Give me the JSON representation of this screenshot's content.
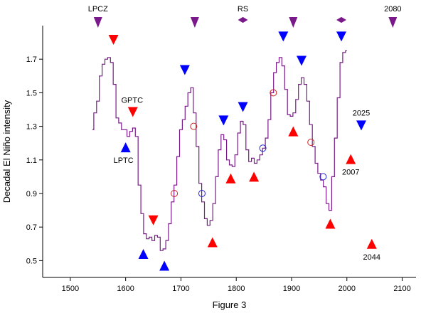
{
  "chart_data": {
    "type": "line",
    "title": "",
    "xlabel": "Figure 3",
    "ylabel": "Decadal El Niño intensity",
    "xlim": [
      1450,
      2125
    ],
    "ylim": [
      0.4,
      1.9
    ],
    "x_ticks": [
      1500,
      1600,
      1700,
      1800,
      1900,
      2000,
      2100
    ],
    "y_ticks": [
      0.5,
      0.7,
      0.9,
      1.1,
      1.3,
      1.5,
      1.7
    ],
    "y_tick_labels": [
      "0.5",
      "0.7",
      "0.9",
      "1.1",
      "1.3",
      "1.5",
      "1.7"
    ],
    "grid": false,
    "legend": "none",
    "colors": {
      "line": "#7a1a8a",
      "red": "#ff0000",
      "blue": "#0000ff",
      "purple": "#7a1a8a",
      "open_red": "#cc2222",
      "open_blue": "#2222cc"
    },
    "series": [
      {
        "type": "line",
        "x": [
          1540,
          1545,
          1550,
          1555,
          1560,
          1565,
          1570,
          1575,
          1580,
          1585,
          1590,
          1595,
          1600,
          1605,
          1610,
          1615,
          1620,
          1625,
          1630,
          1635,
          1640,
          1645,
          1650,
          1655,
          1660,
          1665,
          1670,
          1675,
          1680,
          1685,
          1690,
          1695,
          1700,
          1705,
          1710,
          1715,
          1720,
          1725,
          1730,
          1735,
          1740,
          1745,
          1750,
          1755,
          1760,
          1765,
          1770,
          1775,
          1780,
          1785,
          1790,
          1795,
          1800,
          1805,
          1810,
          1815,
          1820,
          1825,
          1830,
          1835,
          1840,
          1845,
          1850,
          1855,
          1860,
          1865,
          1870,
          1875,
          1880,
          1885,
          1890,
          1895,
          1900,
          1905,
          1910,
          1915,
          1920,
          1925,
          1930,
          1935,
          1940,
          1945,
          1950,
          1955,
          1960,
          1965,
          1970,
          1975,
          1980,
          1985,
          1990,
          1995,
          2000
        ],
        "y": [
          1.28,
          1.38,
          1.45,
          1.6,
          1.67,
          1.7,
          1.71,
          1.68,
          1.55,
          1.35,
          1.32,
          1.28,
          1.28,
          1.24,
          1.27,
          1.29,
          1.24,
          0.95,
          0.78,
          0.66,
          0.63,
          0.64,
          0.62,
          0.65,
          0.64,
          0.56,
          0.57,
          0.62,
          0.72,
          0.85,
          0.95,
          1.12,
          1.28,
          1.34,
          1.42,
          1.5,
          1.53,
          1.38,
          1.18,
          0.96,
          0.85,
          0.75,
          0.71,
          0.74,
          0.84,
          1.0,
          1.16,
          1.25,
          1.22,
          1.1,
          1.07,
          1.06,
          1.13,
          1.26,
          1.33,
          1.31,
          1.16,
          1.09,
          1.11,
          1.08,
          1.1,
          1.13,
          1.17,
          1.23,
          1.34,
          1.5,
          1.62,
          1.68,
          1.71,
          1.66,
          1.52,
          1.37,
          1.36,
          1.38,
          1.46,
          1.55,
          1.59,
          1.55,
          1.45,
          1.31,
          1.18,
          1.08,
          1.02,
          0.98,
          0.94,
          0.84,
          0.8,
          1.0,
          1.23,
          1.47,
          1.68,
          1.74,
          1.75
        ]
      },
      {
        "type": "markers",
        "name": "",
        "markers": [
          {
            "x": 1578,
            "y": 1.815,
            "shape": "triangle-down",
            "color": "#ff0000",
            "label": ""
          },
          {
            "x": 1613,
            "y": 1.385,
            "shape": "triangle-down",
            "color": "#ff0000",
            "label": "GPTC"
          },
          {
            "x": 1600,
            "y": 1.175,
            "shape": "triangle-up",
            "color": "#0000ff",
            "label": "LPTC"
          },
          {
            "x": 1650,
            "y": 0.74,
            "shape": "triangle-down",
            "color": "#ff0000",
            "label": ""
          },
          {
            "x": 1632,
            "y": 0.54,
            "shape": "triangle-up",
            "color": "#0000ff",
            "label": ""
          },
          {
            "x": 1670,
            "y": 0.47,
            "shape": "triangle-up",
            "color": "#0000ff",
            "label": ""
          },
          {
            "x": 1707,
            "y": 1.635,
            "shape": "triangle-down",
            "color": "#0000ff",
            "label": ""
          },
          {
            "x": 1757,
            "y": 0.61,
            "shape": "triangle-up",
            "color": "#ff0000",
            "label": ""
          },
          {
            "x": 1777,
            "y": 1.335,
            "shape": "triangle-down",
            "color": "#0000ff",
            "label": ""
          },
          {
            "x": 1790,
            "y": 0.99,
            "shape": "triangle-up",
            "color": "#ff0000",
            "label": ""
          },
          {
            "x": 1812,
            "y": 1.415,
            "shape": "triangle-down",
            "color": "#0000ff",
            "label": ""
          },
          {
            "x": 1832,
            "y": 1.0,
            "shape": "triangle-up",
            "color": "#ff0000",
            "label": ""
          },
          {
            "x": 1885,
            "y": 1.835,
            "shape": "triangle-down",
            "color": "#0000ff",
            "label": ""
          },
          {
            "x": 1903,
            "y": 1.27,
            "shape": "triangle-up",
            "color": "#ff0000",
            "label": ""
          },
          {
            "x": 1918,
            "y": 1.69,
            "shape": "triangle-down",
            "color": "#0000ff",
            "label": ""
          },
          {
            "x": 1970,
            "y": 0.72,
            "shape": "triangle-up",
            "color": "#ff0000",
            "label": ""
          },
          {
            "x": 1990,
            "y": 1.835,
            "shape": "triangle-down",
            "color": "#0000ff",
            "label": ""
          },
          {
            "x": 2007,
            "y": 1.105,
            "shape": "triangle-up",
            "color": "#ff0000",
            "label": "2007"
          },
          {
            "x": 2026,
            "y": 1.305,
            "shape": "triangle-down",
            "color": "#0000ff",
            "label": "2025"
          },
          {
            "x": 2045,
            "y": 0.6,
            "shape": "triangle-up",
            "color": "#ff0000",
            "label": "2044"
          },
          {
            "x": 1723,
            "y": 1.3,
            "shape": "circle-open",
            "color": "#cc2222",
            "label": ""
          },
          {
            "x": 1688,
            "y": 0.9,
            "shape": "circle-open",
            "color": "#cc2222",
            "label": ""
          },
          {
            "x": 1738,
            "y": 0.9,
            "shape": "circle-open",
            "color": "#2222cc",
            "label": ""
          },
          {
            "x": 1848,
            "y": 1.17,
            "shape": "circle-open",
            "color": "#2222cc",
            "label": ""
          },
          {
            "x": 1867,
            "y": 1.5,
            "shape": "circle-open",
            "color": "#cc2222",
            "label": ""
          },
          {
            "x": 1935,
            "y": 1.205,
            "shape": "circle-open",
            "color": "#cc2222",
            "label": ""
          },
          {
            "x": 1957,
            "y": 1.0,
            "shape": "circle-open",
            "color": "#2222cc",
            "label": ""
          }
        ]
      }
    ],
    "top_markers": [
      {
        "x": 1550,
        "shape": "triangle-down",
        "label": "LPCZ"
      },
      {
        "x": 1725,
        "shape": "triangle-down",
        "label": ""
      },
      {
        "x": 1812,
        "shape": "diamond",
        "label": "RS"
      },
      {
        "x": 1903,
        "shape": "triangle-down",
        "label": ""
      },
      {
        "x": 1990,
        "shape": "diamond",
        "label": ""
      },
      {
        "x": 2083,
        "shape": "triangle-down",
        "label": "2080"
      }
    ]
  }
}
